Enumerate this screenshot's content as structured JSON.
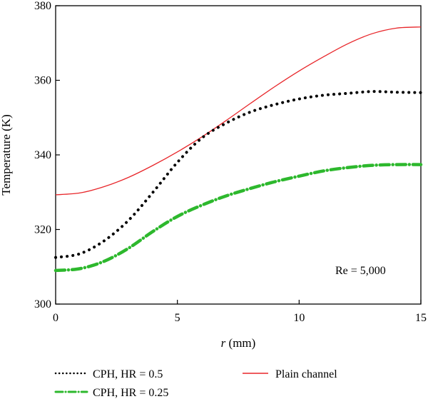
{
  "chart_data": {
    "type": "line",
    "xlabel_var": "r",
    "xlabel_unit": " (mm)",
    "ylabel": "Temperature (K)",
    "xlim": [
      0,
      15
    ],
    "ylim": [
      300,
      380
    ],
    "xticks": [
      0,
      5,
      10,
      15
    ],
    "yticks": [
      300,
      320,
      340,
      360,
      380
    ],
    "annotation": "Re = 5,000",
    "grid": false,
    "legend_position": "bottom",
    "series": [
      {
        "name": "CPH, HR = 0.5",
        "style": "dotted",
        "color": "#000000",
        "x": [
          0,
          1,
          2,
          3,
          4,
          5,
          6,
          7,
          8,
          9,
          10,
          11,
          12,
          13,
          14,
          15
        ],
        "y": [
          312.5,
          313.5,
          317,
          322.5,
          330,
          338,
          344.5,
          348.5,
          351.5,
          353.5,
          355,
          356,
          356.5,
          357,
          356.8,
          356.7
        ]
      },
      {
        "name": "CPH, HR = 0.25",
        "style": "dashdot",
        "color": "#2db82d",
        "x": [
          0,
          1,
          2,
          3,
          4,
          5,
          6,
          7,
          8,
          9,
          10,
          11,
          12,
          13,
          14,
          15
        ],
        "y": [
          309,
          309.5,
          311.5,
          315,
          319.5,
          323.5,
          326.5,
          329,
          331,
          332.8,
          334.3,
          335.7,
          336.6,
          337.2,
          337.4,
          337.4
        ]
      },
      {
        "name": "Plain channel",
        "style": "solid",
        "color": "#e8262a",
        "x": [
          0,
          1,
          2,
          3,
          4,
          5,
          6,
          7,
          8,
          9,
          10,
          11,
          12,
          13,
          14,
          15
        ],
        "y": [
          329.3,
          329.8,
          331.5,
          334,
          337.2,
          340.8,
          344.8,
          349.2,
          353.8,
          358.3,
          362.5,
          366.3,
          369.8,
          372.5,
          374,
          374.3
        ]
      }
    ]
  }
}
